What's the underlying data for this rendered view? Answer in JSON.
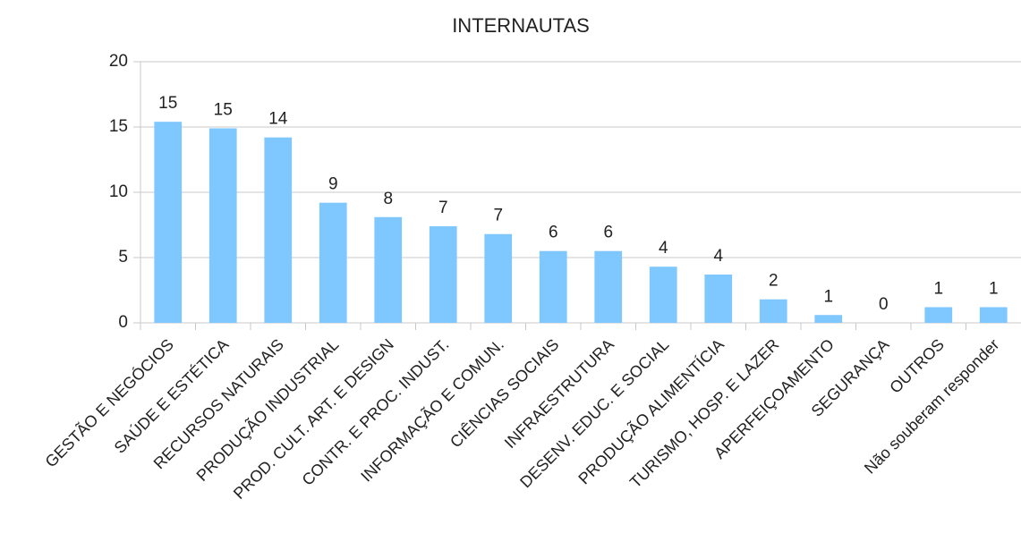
{
  "chart_data": {
    "type": "bar",
    "title": "INTERNAUTAS",
    "categories": [
      "GESTÃO E NEGÓCIOS",
      "SAÚDE E ESTÉTICA",
      "RECURSOS NATURAIS",
      "PRODUÇÃO INDUSTRIAL",
      "PROD. CULT. ART. E DESIGN",
      "CONTR. E PROC. INDUST.",
      "INFORMAÇÃO E COMUN.",
      "CIÊNCIAS SOCIAIS",
      "INFRAESTRUTURA",
      "DESENV. EDUC. E SOCIAL",
      "PRODUÇÃO ALIMENTÍCIA",
      "TURISMO, HOSP. E LAZER",
      "APERFEIÇOAMENTO",
      "SEGURANÇA",
      "OUTROS",
      "Não souberam responder"
    ],
    "values": [
      15.4,
      14.9,
      14.2,
      9.2,
      8.1,
      7.4,
      6.8,
      5.5,
      5.5,
      4.3,
      3.7,
      1.8,
      0.6,
      0,
      1.2,
      1.2
    ],
    "value_labels": [
      "15",
      "15",
      "14",
      "9",
      "8",
      "7",
      "7",
      "6",
      "6",
      "4",
      "4",
      "2",
      "1",
      "0",
      "1",
      "1"
    ],
    "color": "#7fc7ff",
    "ylim": [
      0,
      20
    ],
    "yticks": [
      0,
      5,
      10,
      15,
      20
    ],
    "grid": true
  }
}
